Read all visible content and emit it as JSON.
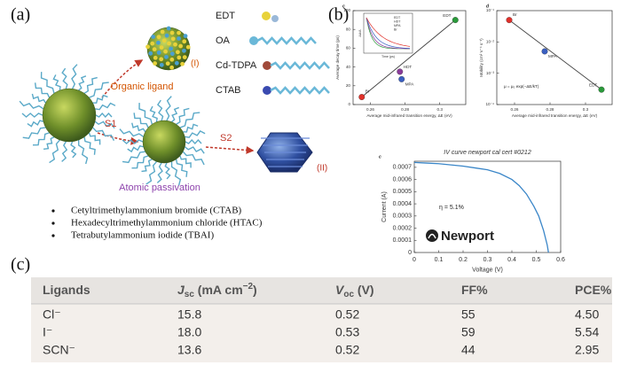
{
  "panel_a": {
    "label": "(a)",
    "ligands": [
      "EDT",
      "OA",
      "Cd-TDPA",
      "CTAB"
    ],
    "organic_ligand": "Organic ligand",
    "marker_1": "(I)",
    "step_1": "S1",
    "atomic_passivation": "Atomic passivation",
    "step_2": "S2",
    "marker_2": "(II)",
    "bullets": [
      "Cetyltrimethylammonium bromide (CTAB)",
      "Hexadecyltrimethylammonium chloride (HTAC)",
      "Tetrabutylammonium iodide (TBAI)"
    ]
  },
  "panel_b": {
    "label": "(b)",
    "charts": [
      {
        "type": "scatter",
        "tag": "c",
        "xlabel": "Average mid-infrared transition energy, ΔE (eV)",
        "ylabel": "Average decay time (ps)",
        "xlim": [
          0.25,
          0.315
        ],
        "xticks": [
          0.26,
          0.28,
          0.3
        ],
        "ylim": [
          0,
          100
        ],
        "yticks": [
          0,
          20,
          40,
          60,
          80,
          100
        ],
        "names": [
          "Br",
          "MPA",
          "HDT",
          "EDT"
        ],
        "colors": [
          "#e0302a",
          "#3a5fc0",
          "#8a3a9a",
          "#2a9a3a"
        ],
        "x": [
          0.255,
          0.278,
          0.277,
          0.309
        ],
        "values": [
          8,
          27,
          35,
          90
        ],
        "inset": {
          "legend": [
            "EDT",
            "HDT",
            "MPA",
            "Br"
          ],
          "xlabel": "Time (ps)",
          "ylabel": "ΔA/A"
        }
      },
      {
        "type": "scatter",
        "tag": "d",
        "xlabel": "Average mid-infrared transition energy, ΔE (eV)",
        "ylabel": "Mobility (cm² V⁻¹ s⁻¹)",
        "log_y": true,
        "xlim": [
          0.25,
          0.315
        ],
        "xticks": [
          0.26,
          0.28,
          0.3
        ],
        "ylim": [
          0.0001,
          0.1
        ],
        "yticks": [
          {
            "value": 0.0001,
            "label": "10⁻⁴"
          },
          {
            "value": 0.001,
            "label": "10⁻³"
          },
          {
            "value": 0.01,
            "label": "10⁻²"
          },
          {
            "value": 0.1,
            "label": "10⁻¹"
          }
        ],
        "names": [
          "Br",
          "MPA",
          "EDT"
        ],
        "colors": [
          "#e0302a",
          "#3a5fc0",
          "#2a9a3a"
        ],
        "x": [
          0.257,
          0.277,
          0.309
        ],
        "values": [
          0.05,
          0.005,
          0.0003
        ],
        "annotation": "μ = μ₀ exp(−ΔE/kT)"
      },
      {
        "type": "line",
        "tag": "c",
        "title": "IV curve newport cal cert #0212",
        "xlabel": "Voltage (V)",
        "ylabel": "Current (A)",
        "color": "#3a86c8",
        "xlim": [
          0,
          0.6
        ],
        "xticks": [
          0,
          0.1,
          0.2,
          0.3,
          0.4,
          0.5,
          0.6
        ],
        "ylim": [
          0,
          0.00075
        ],
        "yticks": [
          0,
          0.0001,
          0.0002,
          0.0003,
          0.0004,
          0.0005,
          0.0006,
          0.0007
        ],
        "x": [
          0,
          0.05,
          0.1,
          0.15,
          0.2,
          0.25,
          0.3,
          0.35,
          0.4,
          0.43,
          0.46,
          0.49,
          0.51,
          0.53,
          0.545,
          0.55
        ],
        "values": [
          0.00074,
          0.000735,
          0.00073,
          0.00072,
          0.00071,
          0.000695,
          0.00068,
          0.00065,
          0.0006,
          0.00055,
          0.00048,
          0.00038,
          0.0003,
          0.00018,
          6e-05,
          0
        ],
        "annotation": "η = 5.1%",
        "logo": "Newport"
      }
    ]
  },
  "panel_c": {
    "label": "(c)",
    "table": {
      "header": [
        {
          "text": "Ligands"
        },
        {
          "symbol": "J",
          "subscript": "sc",
          "unit": " (mA cm",
          "power": "−2",
          "close": ")"
        },
        {
          "symbol": "V",
          "subscript": "oc",
          "unit": " (V)"
        },
        {
          "text": "FF%"
        },
        {
          "text": "PCE%"
        }
      ],
      "rows": [
        [
          "Cl⁻",
          "15.8",
          "0.52",
          "55",
          "4.50"
        ],
        [
          "I⁻",
          "18.0",
          "0.53",
          "59",
          "5.54"
        ],
        [
          "SCN⁻",
          "13.6",
          "0.52",
          "44",
          "2.95"
        ]
      ]
    }
  }
}
